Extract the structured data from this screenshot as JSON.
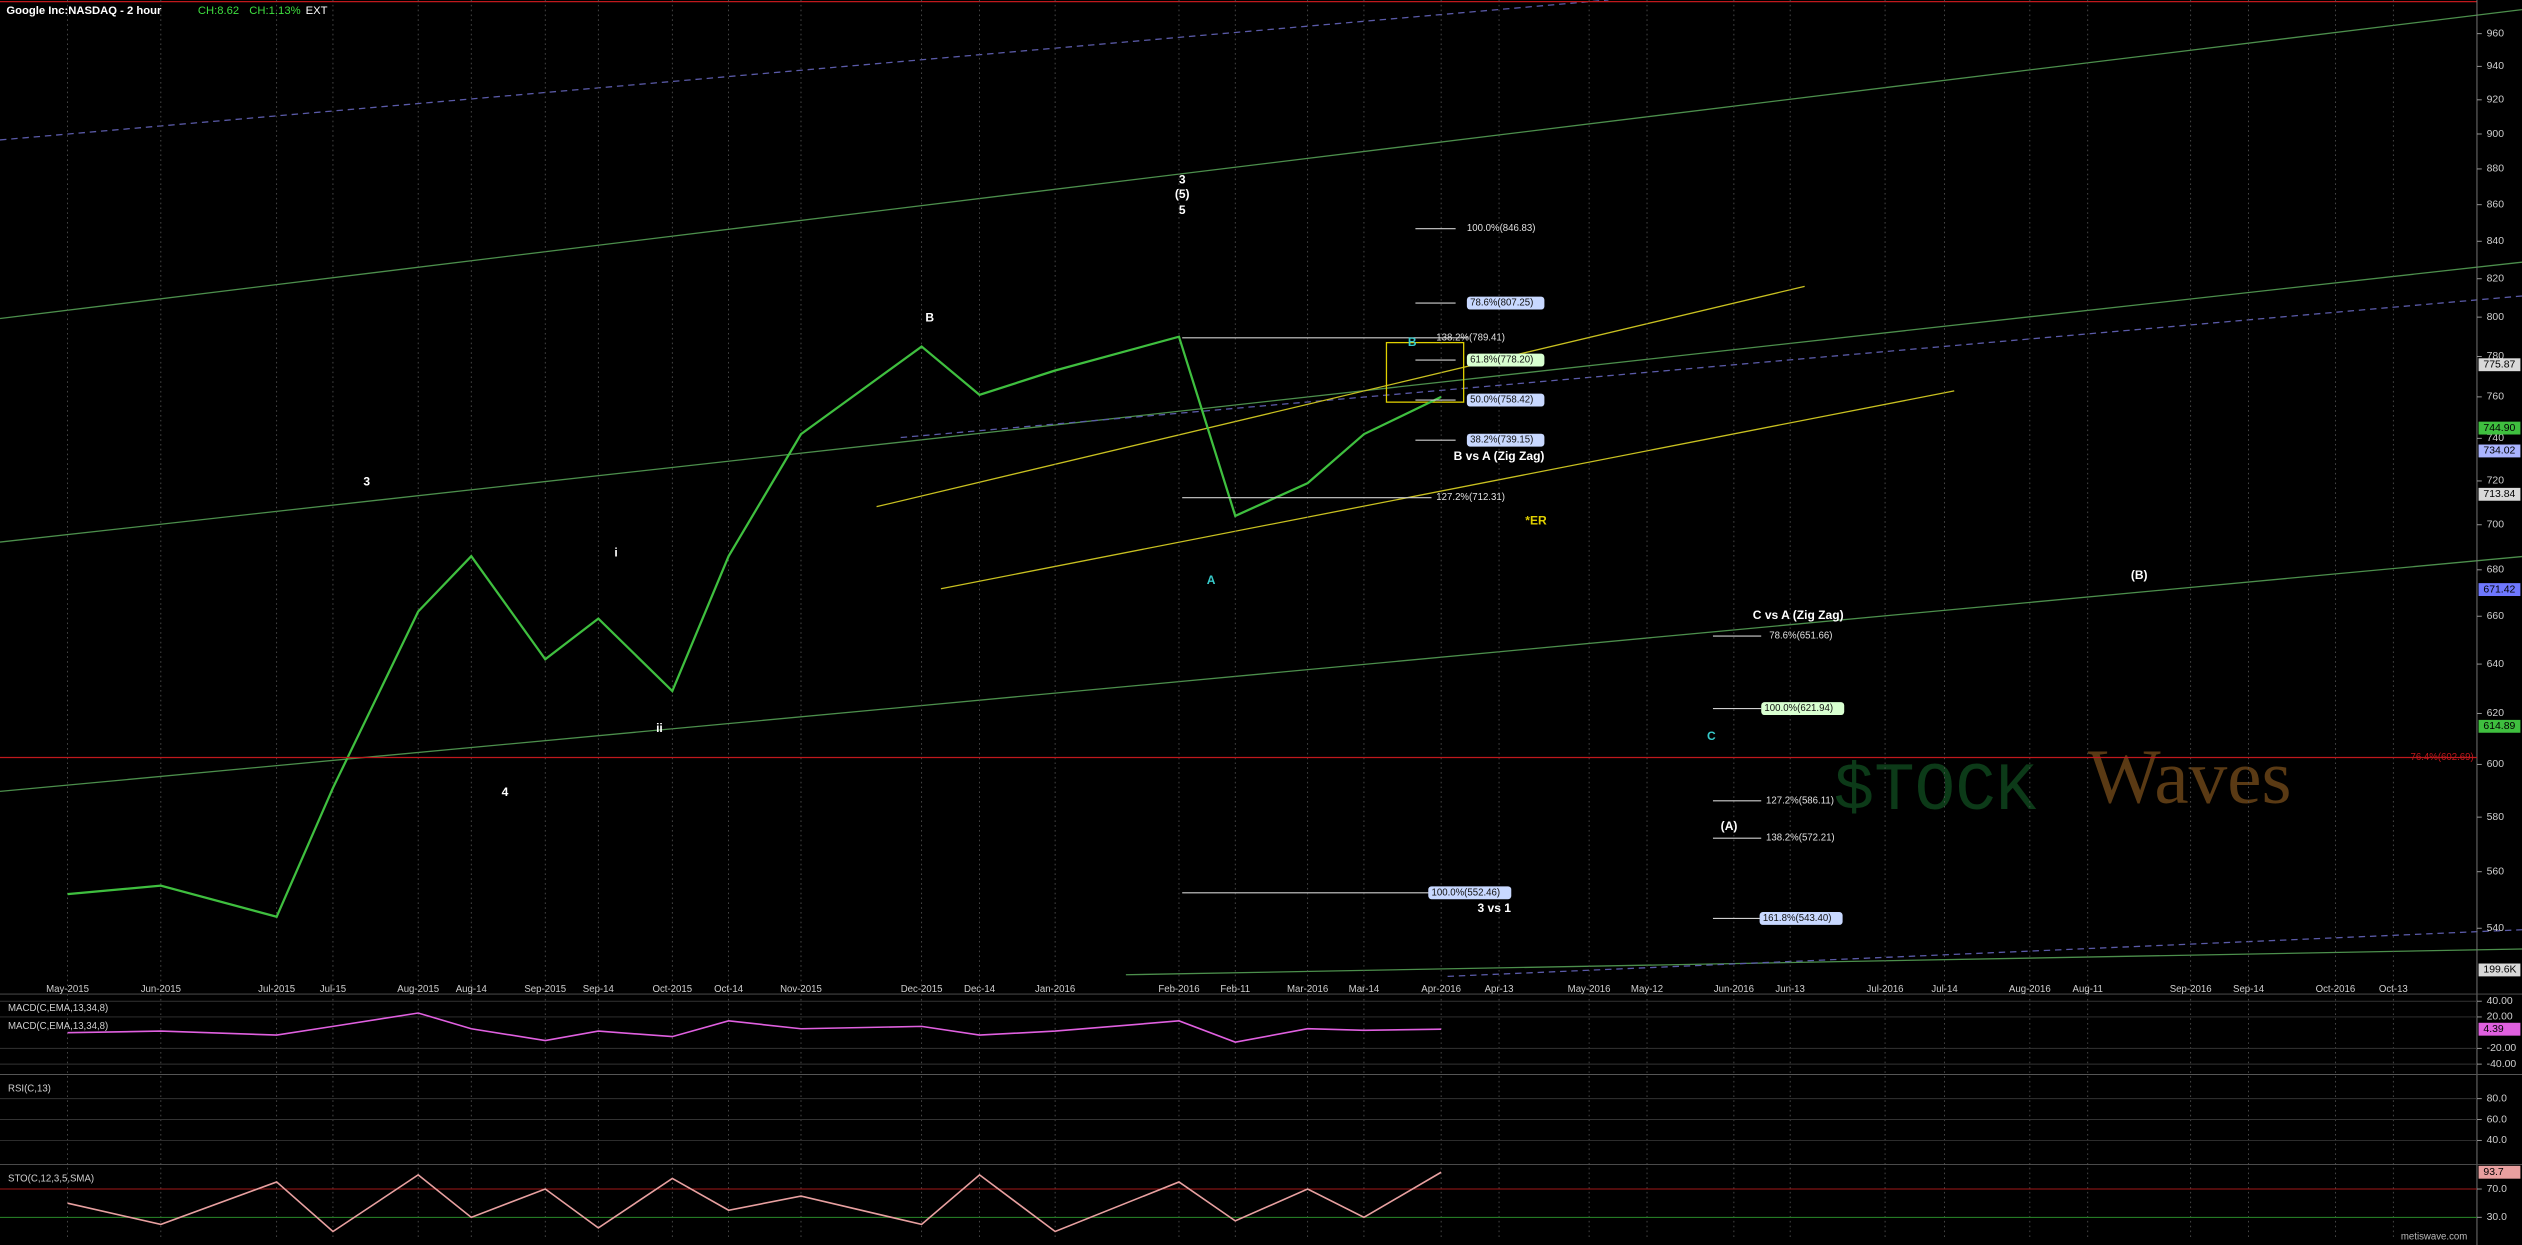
{
  "header": {
    "title": "Google Inc:NASDAQ - 2 hour",
    "change": "CH:8.62",
    "change_pct": "CH:1.13%",
    "session": "EXT"
  },
  "chart_data": [
    {
      "type": "line",
      "log_scale": true,
      "color": "#3fbf3f",
      "categories": [
        "May-2015",
        "Jun-2015",
        "Jul-2015",
        "Jul-15",
        "Aug-2015",
        "Aug-14",
        "Sep-2015",
        "Sep-14",
        "Oct-2015",
        "Oct-14",
        "Nov-2015",
        "Dec-2015",
        "Dec-14",
        "Jan-2016",
        "Feb-2016",
        "Feb-11",
        "Mar-2016",
        "Mar-14",
        "Apr-2016",
        "Apr-13",
        "May-2016",
        "May-12",
        "Jun-2016",
        "Jun-13",
        "Jul-2016",
        "Jul-14",
        "Aug-2016",
        "Aug-11",
        "Sep-2016",
        "Sep-14",
        "Oct-2016",
        "Oct-13"
      ],
      "values": [
        552,
        555,
        544,
        591,
        662,
        686,
        642,
        659,
        629,
        686,
        742,
        785,
        761,
        773,
        790,
        704,
        719,
        742,
        760,
        null,
        null,
        null,
        null,
        null,
        null,
        null,
        null,
        null,
        null,
        null,
        null,
        null
      ],
      "ylim": [
        523,
        981
      ],
      "yticks": [
        540,
        560,
        580,
        600,
        620,
        640,
        660,
        680,
        700,
        720,
        740,
        760,
        780,
        800,
        820,
        840,
        860,
        880,
        900,
        920,
        940,
        960
      ],
      "fib_levels": [
        {
          "label": "100.0%(846.83)",
          "value": 846.83
        },
        {
          "label": "78.6%(807.25)",
          "value": 807.25
        },
        {
          "label": "138.2%(789.41)",
          "value": 789.41
        },
        {
          "label": "61.8%(778.20)",
          "value": 778.2
        },
        {
          "label": "50.0%(758.42)",
          "value": 758.42
        },
        {
          "label": "38.2%(739.15)",
          "value": 739.15
        },
        {
          "label": "127.2%(712.31)",
          "value": 712.31
        },
        {
          "label": "78.6%(651.66)",
          "value": 651.66
        },
        {
          "label": "100.0%(621.94)",
          "value": 621.94
        },
        {
          "label": "127.2%(586.11)",
          "value": 586.11
        },
        {
          "label": "138.2%(572.21)",
          "value": 572.21
        },
        {
          "label": "100.0%(552.46)",
          "value": 552.46
        },
        {
          "label": "161.8%(543.40)",
          "value": 543.4
        }
      ],
      "reference_line": {
        "label": "76.4%(602.69)",
        "value": 602.69,
        "color": "#c0181c"
      },
      "price_tags": [
        {
          "value": 775.87,
          "label": "775.87",
          "color": "#d9d9d9"
        },
        {
          "value": 744.9,
          "label": "744.90",
          "color": "#3fbf3f"
        },
        {
          "value": 734.02,
          "label": "734.02",
          "color": "#aab4ff"
        },
        {
          "value": 713.84,
          "label": "713.84",
          "color": "#d9d9d9"
        },
        {
          "value": 671.42,
          "label": "671.42",
          "color": "#6f78ff"
        },
        {
          "value": 614.89,
          "label": "614.89",
          "color": "#3fbf3f"
        }
      ],
      "volume_label": "199.6K",
      "annotations": [
        {
          "text": "3",
          "color": "#ffffff"
        },
        {
          "text": "4",
          "color": "#ffffff"
        },
        {
          "text": "i",
          "color": "#ffffff"
        },
        {
          "text": "ii",
          "color": "#ffffff"
        },
        {
          "text": "B",
          "color": "#ffffff"
        },
        {
          "text": "3",
          "color": "#ffffff"
        },
        {
          "text": "(5)",
          "color": "#ffffff"
        },
        {
          "text": "5",
          "color": "#ffffff"
        },
        {
          "text": "A",
          "color": "#36c9c9"
        },
        {
          "text": "B",
          "color": "#36c9c9"
        },
        {
          "text": "C",
          "color": "#36c9c9"
        },
        {
          "text": "(B)",
          "color": "#ffffff"
        },
        {
          "text": "(A)",
          "color": "#ffffff"
        },
        {
          "text": "B vs A (Zig Zag)",
          "color": "#ffffff"
        },
        {
          "text": "C vs A (Zig Zag)",
          "color": "#ffffff"
        },
        {
          "text": "3 vs 1",
          "color": "#ffffff"
        },
        {
          "text": "*ER",
          "color": "#e0d000"
        }
      ],
      "watermark": [
        "$TOCK",
        "Waves"
      ]
    },
    {
      "type": "line",
      "titles": [
        "MACD(C,EMA,13,34,8)",
        "MACD(C,EMA,13,34,8)"
      ],
      "color": "#e060e0",
      "values": [
        0,
        2,
        -3,
        8,
        25,
        5,
        -10,
        2,
        -5,
        15,
        5,
        8,
        -3,
        2,
        15,
        -12,
        5,
        3,
        4.39
      ],
      "ylim": [
        -45,
        45
      ],
      "yticks": [
        {
          "value": 40,
          "label": "40.00"
        },
        {
          "value": 20,
          "label": "20.00"
        },
        {
          "value": -20,
          "label": "-20.00"
        },
        {
          "value": -40,
          "label": "-40.00"
        }
      ]
    },
    {
      "type": "panel",
      "titles": [
        "RSI(C,13)"
      ],
      "ylim": [
        20,
        100
      ],
      "yticks": [
        {
          "value": 80,
          "label": "80.0"
        },
        {
          "value": 60,
          "label": "60.0"
        },
        {
          "value": 40,
          "label": "40.0"
        }
      ]
    },
    {
      "type": "line",
      "titles": [
        "STO(C,12,3,5,SMA)"
      ],
      "color": "#e8a0a0",
      "values": [
        50,
        20,
        80,
        10,
        90,
        30,
        70,
        15,
        85,
        40,
        60,
        20,
        90,
        10,
        80,
        25,
        70,
        30,
        93.7
      ],
      "ylim": [
        0,
        100
      ],
      "yticks": [
        {
          "value": 70,
          "label": "70.0"
        },
        {
          "value": 30,
          "label": "30.0"
        }
      ]
    }
  ],
  "footer": "metiswave.com"
}
